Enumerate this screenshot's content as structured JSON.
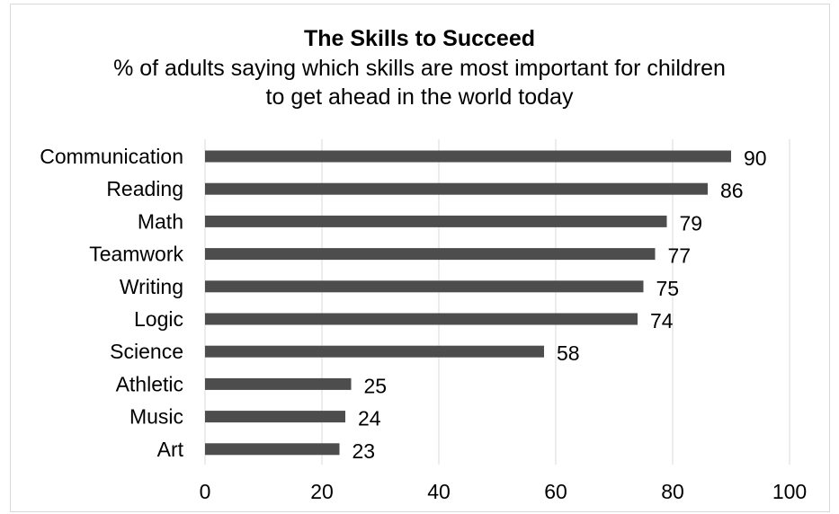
{
  "chart_data": {
    "type": "bar",
    "orientation": "horizontal",
    "title": "The Skills to Succeed",
    "subtitle": "% of adults saying which skills are most important for children to get ahead in the world today",
    "categories": [
      "Communication",
      "Reading",
      "Math",
      "Teamwork",
      "Writing",
      "Logic",
      "Science",
      "Athletic",
      "Music",
      "Art"
    ],
    "values": [
      90,
      86,
      79,
      77,
      75,
      74,
      58,
      25,
      24,
      23
    ],
    "data_labels": [
      "90",
      "86",
      "79",
      "77",
      "75",
      "74",
      "58",
      "25",
      "24",
      "23"
    ],
    "xlim": [
      0,
      100
    ],
    "x_ticks": [
      0,
      20,
      40,
      60,
      80,
      100
    ],
    "x_tick_labels": [
      "0",
      "20",
      "40",
      "60",
      "80",
      "100"
    ],
    "grid": true,
    "legend": "none",
    "bar_color": "#4d4d4d",
    "grid_color": "#d9d9d9"
  }
}
